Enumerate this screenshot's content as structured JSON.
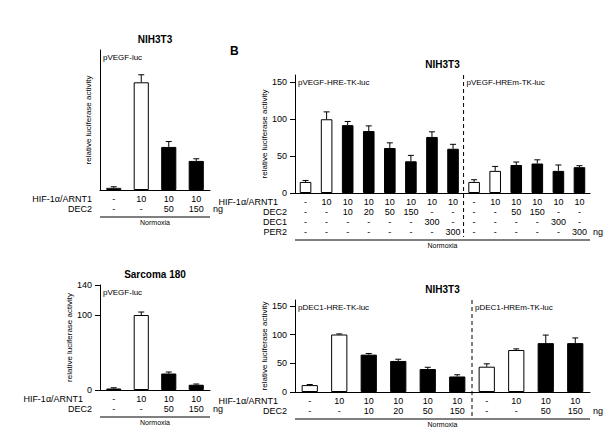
{
  "chart_data": [
    {
      "type": "bar",
      "title": "NIH3T3",
      "y_label": "relative luciferase activity",
      "ylim": [
        0,
        130
      ],
      "tick_labels": false,
      "grid": false,
      "unit": "ng",
      "condition": "Normoxia",
      "groups": [
        {
          "label": "pVEGF-luc",
          "values": [
            2,
            100,
            40,
            27
          ],
          "errors": [
            1,
            7,
            5,
            2
          ],
          "colors": [
            "#ffffff",
            "#ffffff",
            "#000000",
            "#000000"
          ]
        }
      ],
      "rows": [
        {
          "name": "HIF-1α/ARNT1",
          "values": [
            "-",
            "10",
            "10",
            "10"
          ]
        },
        {
          "name": "DEC2",
          "values": [
            "-",
            "-",
            "50",
            "150"
          ]
        }
      ]
    },
    {
      "type": "bar",
      "title": "Sarcoma 180",
      "y_label": "relative luciferase activity",
      "ylim": [
        0,
        140
      ],
      "yticks": [
        0,
        100
      ],
      "tick_labels": "y",
      "grid": false,
      "unit": "ng",
      "condition": "Normoxia",
      "groups": [
        {
          "label": "pVEGF-luc",
          "values": [
            2,
            100,
            22,
            7
          ],
          "errors": [
            1,
            4,
            2,
            1
          ],
          "colors": [
            "#ffffff",
            "#ffffff",
            "#000000",
            "#000000"
          ]
        }
      ],
      "rows": [
        {
          "name": "HIF-1α/ARNT1",
          "values": [
            "-",
            "10",
            "10",
            "10"
          ]
        },
        {
          "name": "DEC2",
          "values": [
            "-",
            "-",
            "50",
            "150"
          ]
        }
      ]
    },
    {
      "type": "bar",
      "panel_label": "B",
      "title": "NIH3T3",
      "y_label": "relative luciferase activity",
      "ylim": [
        0,
        160
      ],
      "yticks": [
        0,
        50,
        100,
        150
      ],
      "tick_labels": "y",
      "grid": false,
      "unit": "ng",
      "condition": "Normoxia",
      "groups": [
        {
          "label": "pVEGF-HRE-TK-luc",
          "values": [
            15,
            100,
            92,
            84,
            61,
            43,
            76,
            60
          ],
          "errors": [
            2,
            10,
            5,
            7,
            7,
            8,
            7,
            6
          ],
          "colors": [
            "#ffffff",
            "#ffffff",
            "#000000",
            "#000000",
            "#000000",
            "#000000",
            "#000000",
            "#000000"
          ]
        },
        {
          "label": "pVEGF-HREm-TK-luc",
          "values": [
            15,
            30,
            38,
            40,
            30,
            35
          ],
          "errors": [
            3,
            6,
            4,
            5,
            8,
            2
          ],
          "colors": [
            "#ffffff",
            "#ffffff",
            "#000000",
            "#000000",
            "#000000",
            "#000000"
          ]
        }
      ],
      "rows": [
        {
          "name": "HIF-1α/ARNT1",
          "values": [
            "-",
            "10",
            "10",
            "10",
            "10",
            "10",
            "10",
            "10",
            "-",
            "10",
            "10",
            "10",
            "10",
            "10"
          ]
        },
        {
          "name": "DEC2",
          "values": [
            "-",
            "-",
            "10",
            "20",
            "50",
            "150",
            "-",
            "-",
            "-",
            "-",
            "50",
            "150",
            "-",
            "-"
          ]
        },
        {
          "name": "DEC1",
          "values": [
            "-",
            "-",
            "-",
            "-",
            "-",
            "-",
            "300",
            "-",
            "-",
            "-",
            "-",
            "-",
            "300",
            "-"
          ]
        },
        {
          "name": "PER2",
          "values": [
            "-",
            "-",
            "-",
            "-",
            "-",
            "-",
            "-",
            "300",
            "-",
            "-",
            "-",
            "-",
            "-",
            "300"
          ]
        }
      ]
    },
    {
      "type": "bar",
      "title": "NIH3T3",
      "y_label": "relative luciferase activity",
      "ylim": [
        0,
        160
      ],
      "yticks": [
        0,
        50,
        100,
        150
      ],
      "tick_labels": "y",
      "grid": false,
      "unit": "ng",
      "condition": "Normoxia",
      "groups": [
        {
          "label": "pDEC1-HRE-TK-luc",
          "values": [
            12,
            100,
            65,
            54,
            40,
            27
          ],
          "errors": [
            1,
            1,
            2,
            3,
            3,
            3
          ],
          "colors": [
            "#ffffff",
            "#ffffff",
            "#000000",
            "#000000",
            "#000000",
            "#000000"
          ]
        },
        {
          "label": "pDEC1-HREm-TK-luc",
          "values": [
            44,
            73,
            85,
            85
          ],
          "errors": [
            5,
            2,
            14,
            9
          ],
          "colors": [
            "#ffffff",
            "#ffffff",
            "#000000",
            "#000000"
          ]
        }
      ],
      "rows": [
        {
          "name": "HIF-1α/ARNT1",
          "values": [
            "-",
            "10",
            "10",
            "10",
            "10",
            "10",
            "-",
            "10",
            "10",
            "10"
          ]
        },
        {
          "name": "DEC2",
          "values": [
            "-",
            "-",
            "10",
            "20",
            "50",
            "150",
            "-",
            "-",
            "50",
            "150"
          ]
        }
      ]
    }
  ]
}
